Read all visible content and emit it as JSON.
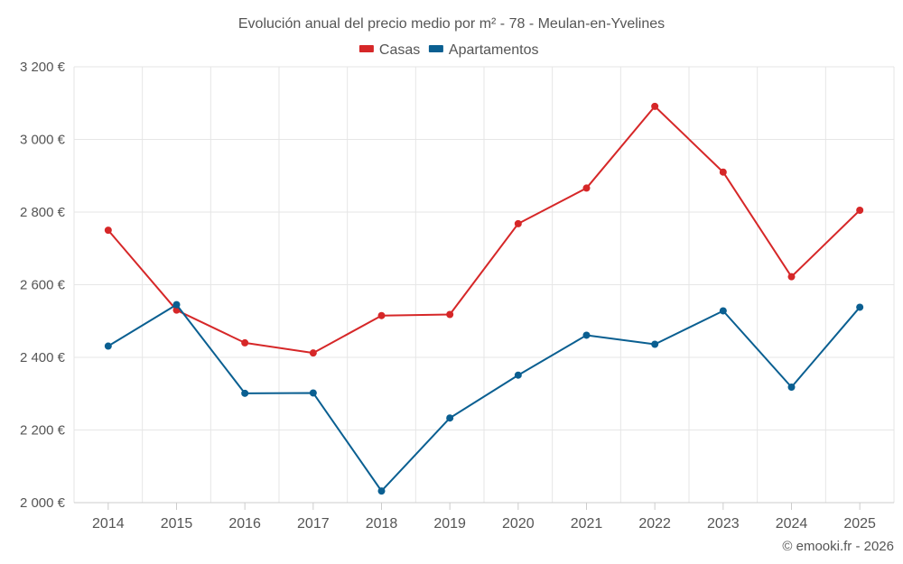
{
  "chart_data": {
    "type": "line",
    "title": "Evolución anual del precio medio por m² - 78 - Meulan-en-Yvelines",
    "categories": [
      "2014",
      "2015",
      "2016",
      "2017",
      "2018",
      "2019",
      "2020",
      "2021",
      "2022",
      "2023",
      "2024",
      "2025"
    ],
    "series": [
      {
        "name": "Casas",
        "color": "#d62728",
        "values": [
          2750,
          2530,
          2440,
          2412,
          2515,
          2518,
          2768,
          2866,
          3091,
          2910,
          2622,
          2805
        ]
      },
      {
        "name": "Apartamentos",
        "color": "#0a5f91",
        "values": [
          2431,
          2545,
          2301,
          2302,
          2032,
          2233,
          2351,
          2461,
          2436,
          2528,
          2318,
          2538
        ]
      }
    ],
    "ylim": [
      2000,
      3200
    ],
    "yticks": [
      2000,
      2200,
      2400,
      2600,
      2800,
      3000,
      3200
    ],
    "ytick_labels": [
      "2 000 €",
      "2 200 €",
      "2 400 €",
      "2 600 €",
      "2 800 €",
      "3 000 €",
      "3 200 €"
    ],
    "legend_position": "top-center",
    "grid": true,
    "credit": "© emooki.fr - 2026"
  }
}
